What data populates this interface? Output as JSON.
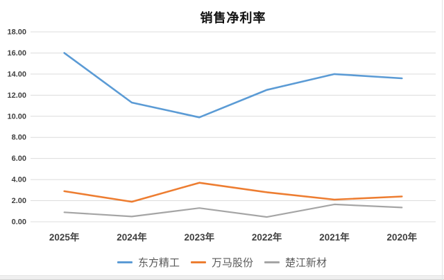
{
  "chart_data": {
    "type": "line",
    "title": "销售净利率",
    "categories": [
      "2025年",
      "2024年",
      "2023年",
      "2022年",
      "2021年",
      "2020年"
    ],
    "series": [
      {
        "name": "东方精工",
        "color": "#5B9BD5",
        "values": [
          16.0,
          11.3,
          9.9,
          12.5,
          14.0,
          13.6
        ]
      },
      {
        "name": "万马股份",
        "color": "#ED7D31",
        "values": [
          2.9,
          1.9,
          3.7,
          2.8,
          2.1,
          2.4
        ]
      },
      {
        "name": "楚江新材",
        "color": "#A5A5A5",
        "values": [
          0.9,
          0.5,
          1.3,
          0.45,
          1.65,
          1.35
        ]
      }
    ],
    "xlabel": "",
    "ylabel": "",
    "ylim": [
      0,
      18
    ],
    "ytick_step": 2,
    "ytick_decimals": 2,
    "grid": "horizontal",
    "legend_position": "bottom"
  },
  "style_colors": {
    "gridline": "#dcdcdc",
    "axis_label": "#404040",
    "legend_text": "#595959",
    "title_text": "#111111",
    "bottom_bar": "#efefef",
    "right_edge_line": "#e3e3e3"
  }
}
